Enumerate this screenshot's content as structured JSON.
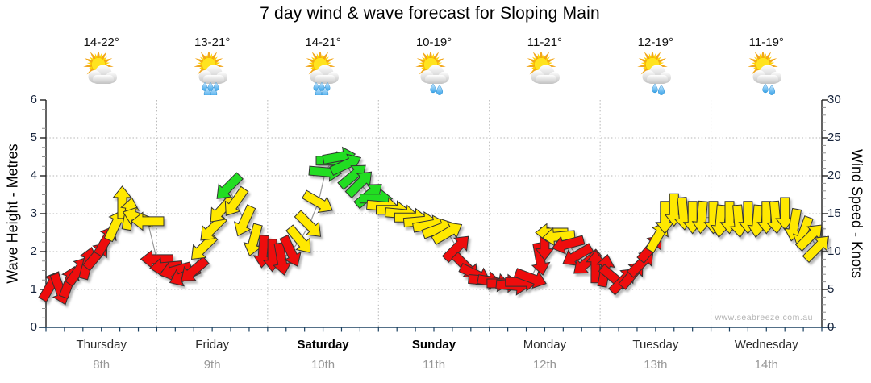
{
  "title": "7 day wind & wave forecast for Sloping Main",
  "watermark": "www.seabreeze.com.au",
  "arrow_colors": {
    "red": "#ee0808",
    "yellow": "#ffe800",
    "green": "#22dd22"
  },
  "style_colors": {
    "bottom_axis": "#1b4060",
    "side_axis": "#222222",
    "grid": "#b5b5b5",
    "connector_line": "#999999",
    "minor_tick": "#909090"
  },
  "chart_data": {
    "type": "line",
    "title": "7 day wind & wave forecast for Sloping Main",
    "y_left": {
      "label": "Wave Height - Metres",
      "range": [
        0,
        6
      ],
      "ticks": [
        0,
        1,
        2,
        3,
        4,
        5,
        6
      ]
    },
    "y_right": {
      "label": "Wind Speed - Knots",
      "range": [
        0,
        30
      ],
      "ticks": [
        0,
        5,
        10,
        15,
        20,
        25,
        30
      ]
    },
    "grid": true,
    "days": [
      {
        "name": "Thursday",
        "date": "8th",
        "temp": "14-22°",
        "bold": false,
        "rain": "none"
      },
      {
        "name": "Friday",
        "date": "9th",
        "temp": "13-21°",
        "bold": false,
        "rain": "showers"
      },
      {
        "name": "Saturday",
        "date": "10th",
        "temp": "14-21°",
        "bold": true,
        "rain": "showers"
      },
      {
        "name": "Sunday",
        "date": "11th",
        "temp": "10-19°",
        "bold": true,
        "rain": "light"
      },
      {
        "name": "Monday",
        "date": "12th",
        "temp": "11-21°",
        "bold": false,
        "rain": "none"
      },
      {
        "name": "Tuesday",
        "date": "13th",
        "temp": "12-19°",
        "bold": false,
        "rain": "light"
      },
      {
        "name": "Wednesday",
        "date": "14th",
        "temp": "11-19°",
        "bold": false,
        "rain": "light"
      }
    ],
    "series": [
      {
        "name": "wind-speed-direction-arrows",
        "unit": "knots",
        "point_format": [
          "day_index",
          "hour",
          "knots",
          "direction_deg_pointing_to",
          "color"
        ],
        "points": [
          [
            0,
            1,
            5.5,
            30,
            "red"
          ],
          [
            0,
            3,
            5,
            160,
            "red"
          ],
          [
            0,
            5,
            6,
            20,
            "red"
          ],
          [
            0,
            7,
            7.5,
            35,
            "red"
          ],
          [
            0,
            9,
            8.5,
            15,
            "red"
          ],
          [
            0,
            11,
            9.5,
            40,
            "red"
          ],
          [
            0,
            13,
            11.5,
            30,
            "red"
          ],
          [
            0,
            15,
            13.5,
            25,
            "yellow"
          ],
          [
            0,
            16.5,
            16.5,
            0,
            "yellow"
          ],
          [
            0,
            18,
            15,
            10,
            "yellow"
          ],
          [
            0,
            20,
            14.5,
            290,
            "yellow"
          ],
          [
            0,
            22,
            14,
            270,
            "yellow"
          ],
          [
            1,
            0,
            9,
            270,
            "red"
          ],
          [
            1,
            2,
            8,
            265,
            "red"
          ],
          [
            1,
            4,
            7.5,
            255,
            "red"
          ],
          [
            1,
            6,
            6.8,
            245,
            "red"
          ],
          [
            1,
            8,
            7.5,
            230,
            "red"
          ],
          [
            1,
            10,
            10.5,
            225,
            "yellow"
          ],
          [
            1,
            12,
            13,
            225,
            "yellow"
          ],
          [
            1,
            14,
            15.5,
            222,
            "yellow"
          ],
          [
            1,
            15.5,
            18.5,
            225,
            "green"
          ],
          [
            1,
            17,
            16.5,
            215,
            "yellow"
          ],
          [
            1,
            19,
            14,
            205,
            "yellow"
          ],
          [
            1,
            21,
            11.5,
            195,
            "yellow"
          ],
          [
            1,
            23,
            10,
            185,
            "red"
          ],
          [
            2,
            1,
            9.5,
            180,
            "red"
          ],
          [
            2,
            3,
            9,
            170,
            "red"
          ],
          [
            2,
            5,
            10,
            155,
            "red"
          ],
          [
            2,
            7,
            11.5,
            140,
            "yellow"
          ],
          [
            2,
            9,
            13.5,
            135,
            "yellow"
          ],
          [
            2,
            11,
            16.5,
            120,
            "yellow"
          ],
          [
            2,
            12.5,
            20.5,
            95,
            "green"
          ],
          [
            2,
            14,
            22,
            90,
            "green"
          ],
          [
            2,
            15.5,
            22.5,
            80,
            "green"
          ],
          [
            2,
            17,
            21.5,
            65,
            "green"
          ],
          [
            2,
            18.5,
            20,
            50,
            "green"
          ],
          [
            2,
            20,
            19,
            45,
            "green"
          ],
          [
            2,
            22,
            17.5,
            50,
            "green"
          ],
          [
            2,
            23.5,
            17,
            90,
            "green"
          ],
          [
            3,
            1,
            16,
            95,
            "yellow"
          ],
          [
            3,
            3,
            15.5,
            90,
            "yellow"
          ],
          [
            3,
            5,
            15,
            95,
            "yellow"
          ],
          [
            3,
            7,
            14.5,
            90,
            "yellow"
          ],
          [
            3,
            9,
            14,
            85,
            "yellow"
          ],
          [
            3,
            11,
            13.5,
            80,
            "yellow"
          ],
          [
            3,
            13,
            13,
            70,
            "yellow"
          ],
          [
            3,
            15,
            12.5,
            60,
            "yellow"
          ],
          [
            3,
            17,
            10.5,
            45,
            "red"
          ],
          [
            3,
            19,
            8,
            135,
            "red"
          ],
          [
            3,
            21,
            7,
            115,
            "red"
          ],
          [
            3,
            23,
            6.2,
            95,
            "red"
          ],
          [
            4,
            1,
            6,
            100,
            "red"
          ],
          [
            4,
            3,
            5.8,
            90,
            "red"
          ],
          [
            4,
            5,
            5.5,
            95,
            "red"
          ],
          [
            4,
            7,
            6,
            90,
            "red"
          ],
          [
            4,
            9,
            6.5,
            110,
            "red"
          ],
          [
            4,
            11,
            9,
            170,
            "red"
          ],
          [
            4,
            12,
            11,
            180,
            "red"
          ],
          [
            4,
            13.5,
            12.5,
            270,
            "yellow"
          ],
          [
            4,
            15,
            12,
            265,
            "yellow"
          ],
          [
            4,
            17,
            11,
            255,
            "red"
          ],
          [
            4,
            19,
            9.5,
            240,
            "red"
          ],
          [
            4,
            21,
            8.5,
            230,
            "red"
          ],
          [
            4,
            23,
            8,
            0,
            "red"
          ],
          [
            5,
            1,
            7.5,
            10,
            "red"
          ],
          [
            5,
            3,
            6.5,
            130,
            "red"
          ],
          [
            5,
            5,
            6.2,
            45,
            "red"
          ],
          [
            5,
            7,
            7,
            40,
            "red"
          ],
          [
            5,
            9,
            8.5,
            45,
            "red"
          ],
          [
            5,
            11,
            10.5,
            40,
            "red"
          ],
          [
            5,
            12.5,
            12,
            30,
            "yellow"
          ],
          [
            5,
            14,
            14.5,
            180,
            "yellow"
          ],
          [
            5,
            16,
            15.5,
            180,
            "yellow"
          ],
          [
            5,
            18,
            15,
            175,
            "yellow"
          ],
          [
            5,
            20,
            14.5,
            180,
            "yellow"
          ],
          [
            5,
            22,
            14.5,
            185,
            "yellow"
          ],
          [
            6,
            0.5,
            14.5,
            180,
            "yellow"
          ],
          [
            6,
            2,
            14,
            185,
            "yellow"
          ],
          [
            6,
            4,
            14.5,
            180,
            "yellow"
          ],
          [
            6,
            6,
            14,
            175,
            "yellow"
          ],
          [
            6,
            8,
            14.5,
            180,
            "yellow"
          ],
          [
            6,
            10,
            14,
            185,
            "yellow"
          ],
          [
            6,
            12,
            14.5,
            180,
            "yellow"
          ],
          [
            6,
            14,
            14.5,
            175,
            "yellow"
          ],
          [
            6,
            16,
            15,
            180,
            "yellow"
          ],
          [
            6,
            18,
            13.5,
            190,
            "yellow"
          ],
          [
            6,
            20,
            12.5,
            200,
            "yellow"
          ],
          [
            6,
            21.5,
            12,
            45,
            "yellow"
          ],
          [
            6,
            23,
            10.5,
            45,
            "yellow"
          ]
        ]
      }
    ]
  }
}
